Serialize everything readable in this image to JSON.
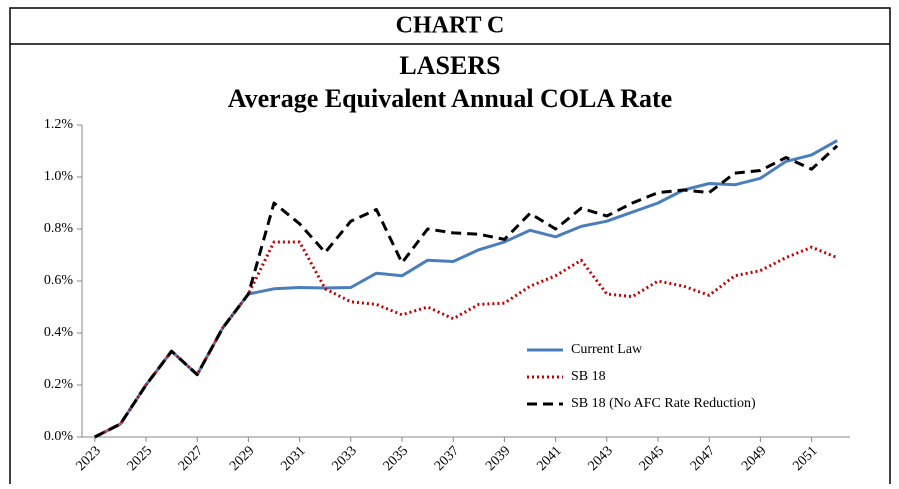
{
  "header": {
    "title": "CHART C"
  },
  "chart_data": {
    "type": "line",
    "title": "LASERS",
    "subtitle": "Average Equivalent Annual COLA Rate",
    "x": [
      2023,
      2024,
      2025,
      2026,
      2027,
      2028,
      2029,
      2030,
      2031,
      2032,
      2033,
      2034,
      2035,
      2036,
      2037,
      2038,
      2039,
      2040,
      2041,
      2042,
      2043,
      2044,
      2045,
      2046,
      2047,
      2048,
      2049,
      2050,
      2051,
      2052
    ],
    "xlim": [
      2022.5,
      2052.5
    ],
    "xticks": [
      2023,
      2025,
      2027,
      2029,
      2031,
      2033,
      2035,
      2037,
      2039,
      2041,
      2043,
      2045,
      2047,
      2049,
      2051
    ],
    "ylim": [
      0,
      1.2
    ],
    "yticks": [
      {
        "value": 0,
        "label": "0.0%"
      },
      {
        "value": 0.2,
        "label": "0.2%"
      },
      {
        "value": 0.4,
        "label": "0.4%"
      },
      {
        "value": 0.6,
        "label": "0.6%"
      },
      {
        "value": 0.8,
        "label": "0.8%"
      },
      {
        "value": 1.0,
        "label": "1.0%"
      },
      {
        "value": 1.2,
        "label": "1.2%"
      }
    ],
    "legend": "lower right",
    "series": [
      {
        "name": "Current Law",
        "color": "#4a7ebb",
        "style": "solid",
        "values": [
          0,
          0.05,
          0.2,
          0.33,
          0.24,
          0.42,
          0.55,
          0.57,
          0.575,
          0.573,
          0.575,
          0.63,
          0.62,
          0.68,
          0.675,
          0.72,
          0.75,
          0.795,
          0.77,
          0.81,
          0.83,
          0.865,
          0.9,
          0.95,
          0.975,
          0.97,
          0.995,
          1.06,
          1.085,
          1.14
        ]
      },
      {
        "name": "SB 18",
        "color": "#c00000",
        "style": "dotted",
        "values": [
          0,
          0.05,
          0.2,
          0.33,
          0.24,
          0.42,
          0.55,
          0.75,
          0.75,
          0.57,
          0.52,
          0.51,
          0.47,
          0.5,
          0.455,
          0.51,
          0.515,
          0.58,
          0.62,
          0.68,
          0.55,
          0.54,
          0.6,
          0.58,
          0.545,
          0.62,
          0.64,
          0.69,
          0.73,
          0.69
        ]
      },
      {
        "name": "SB 18 (No AFC Rate Reduction)",
        "color": "#000000",
        "style": "dashed",
        "values": [
          0,
          0.05,
          0.2,
          0.33,
          0.24,
          0.42,
          0.55,
          0.9,
          0.82,
          0.71,
          0.83,
          0.875,
          0.67,
          0.8,
          0.785,
          0.78,
          0.76,
          0.86,
          0.8,
          0.88,
          0.85,
          0.9,
          0.94,
          0.95,
          0.94,
          1.015,
          1.025,
          1.075,
          1.03,
          1.12
        ]
      }
    ]
  }
}
